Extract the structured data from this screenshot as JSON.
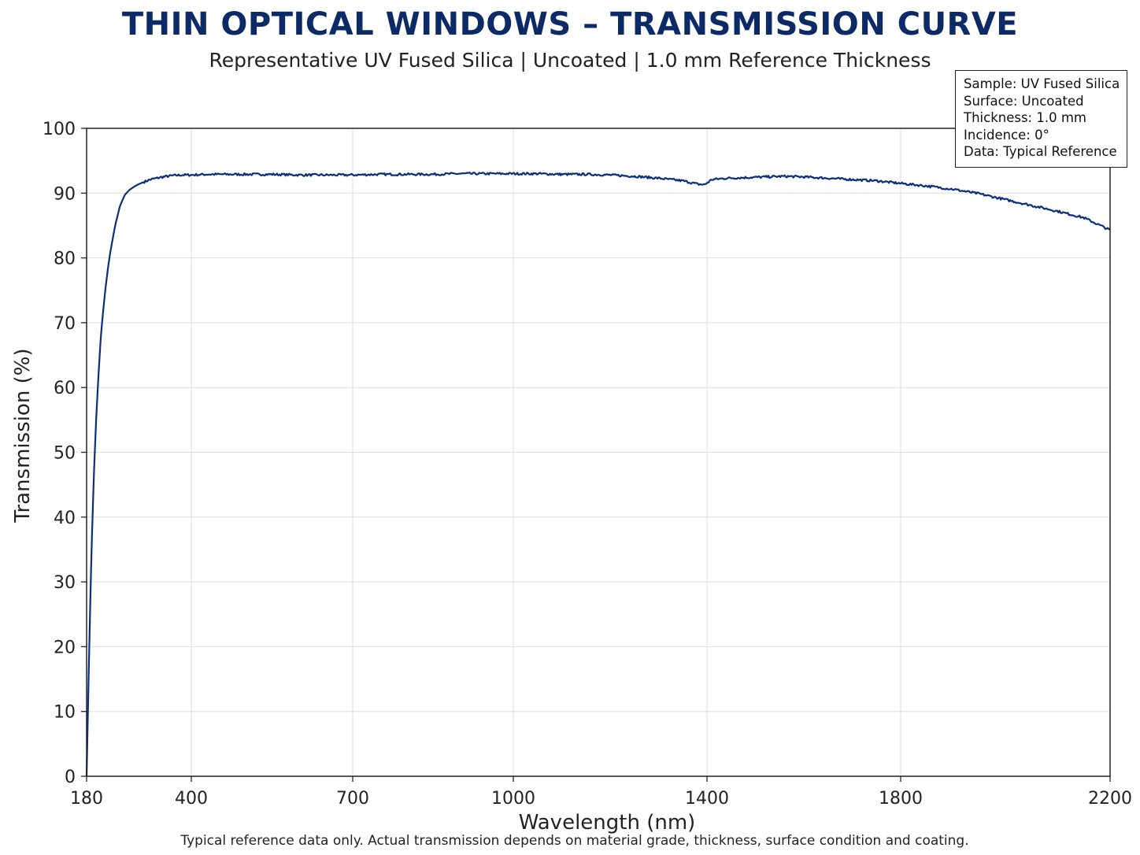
{
  "title": "THIN OPTICAL WINDOWS – TRANSMISSION CURVE",
  "subtitle": "Representative UV Fused Silica | Uncoated | 1.0 mm Reference Thickness",
  "footnote": "Typical reference data only. Actual transmission depends on material grade, thickness, surface condition and coating.",
  "info_box": [
    "Sample: UV Fused Silica",
    "Surface: Uncoated",
    "Thickness: 1.0 mm",
    "Incidence: 0°",
    "Data: Typical Reference"
  ],
  "colors": {
    "line": "#0b2f7d",
    "title": "#0b2a66",
    "grid": "#dddddd"
  },
  "chart_data": {
    "type": "line",
    "title": "THIN OPTICAL WINDOWS – TRANSMISSION CURVE",
    "subtitle": "Representative UV Fused Silica | Uncoated | 1.0 mm Reference Thickness",
    "xlabel": "Wavelength (nm)",
    "ylabel": "Transmission (%)",
    "xlim": [
      180,
      2200
    ],
    "ylim": [
      0,
      100
    ],
    "x_breakpoints": [
      180,
      400,
      700,
      1000,
      1400,
      1800,
      2200
    ],
    "x_ticks": [
      180,
      400,
      700,
      1000,
      1400,
      1800,
      2200
    ],
    "y_ticks": [
      0,
      10,
      20,
      30,
      40,
      50,
      60,
      70,
      80,
      90,
      100
    ],
    "grid": true,
    "series": [
      {
        "x": [
          180,
          185,
          190,
          195,
          200,
          205,
          210,
          215,
          220,
          225,
          230,
          235,
          240,
          245,
          250,
          260,
          270,
          280,
          290,
          300,
          310,
          320,
          340,
          360,
          380,
          400,
          430,
          460,
          500,
          550,
          600,
          650,
          700,
          750,
          800,
          850,
          900,
          950,
          1000,
          1050,
          1100,
          1150,
          1200,
          1250,
          1300,
          1350,
          1380,
          1395,
          1410,
          1440,
          1480,
          1520,
          1560,
          1600,
          1650,
          1700,
          1750,
          1800,
          1850,
          1900,
          1950,
          2000,
          2050,
          2100,
          2150,
          2200
        ],
        "y": [
          0,
          18,
          34,
          46,
          55,
          62,
          68,
          72,
          75.5,
          78.5,
          81,
          83,
          85,
          86.5,
          88,
          89.7,
          90.5,
          91,
          91.4,
          91.7,
          92,
          92.2,
          92.5,
          92.7,
          92.8,
          92.8,
          92.9,
          92.9,
          92.9,
          92.9,
          92.8,
          92.8,
          92.8,
          92.9,
          92.9,
          92.9,
          93,
          93,
          93,
          93,
          92.9,
          92.9,
          92.8,
          92.6,
          92.3,
          91.9,
          91.4,
          91.3,
          92.1,
          92.3,
          92.4,
          92.5,
          92.6,
          92.5,
          92.3,
          92.1,
          91.9,
          91.5,
          91.1,
          90.6,
          89.9,
          89,
          88.1,
          87.2,
          86.2,
          84.3
        ]
      }
    ]
  }
}
